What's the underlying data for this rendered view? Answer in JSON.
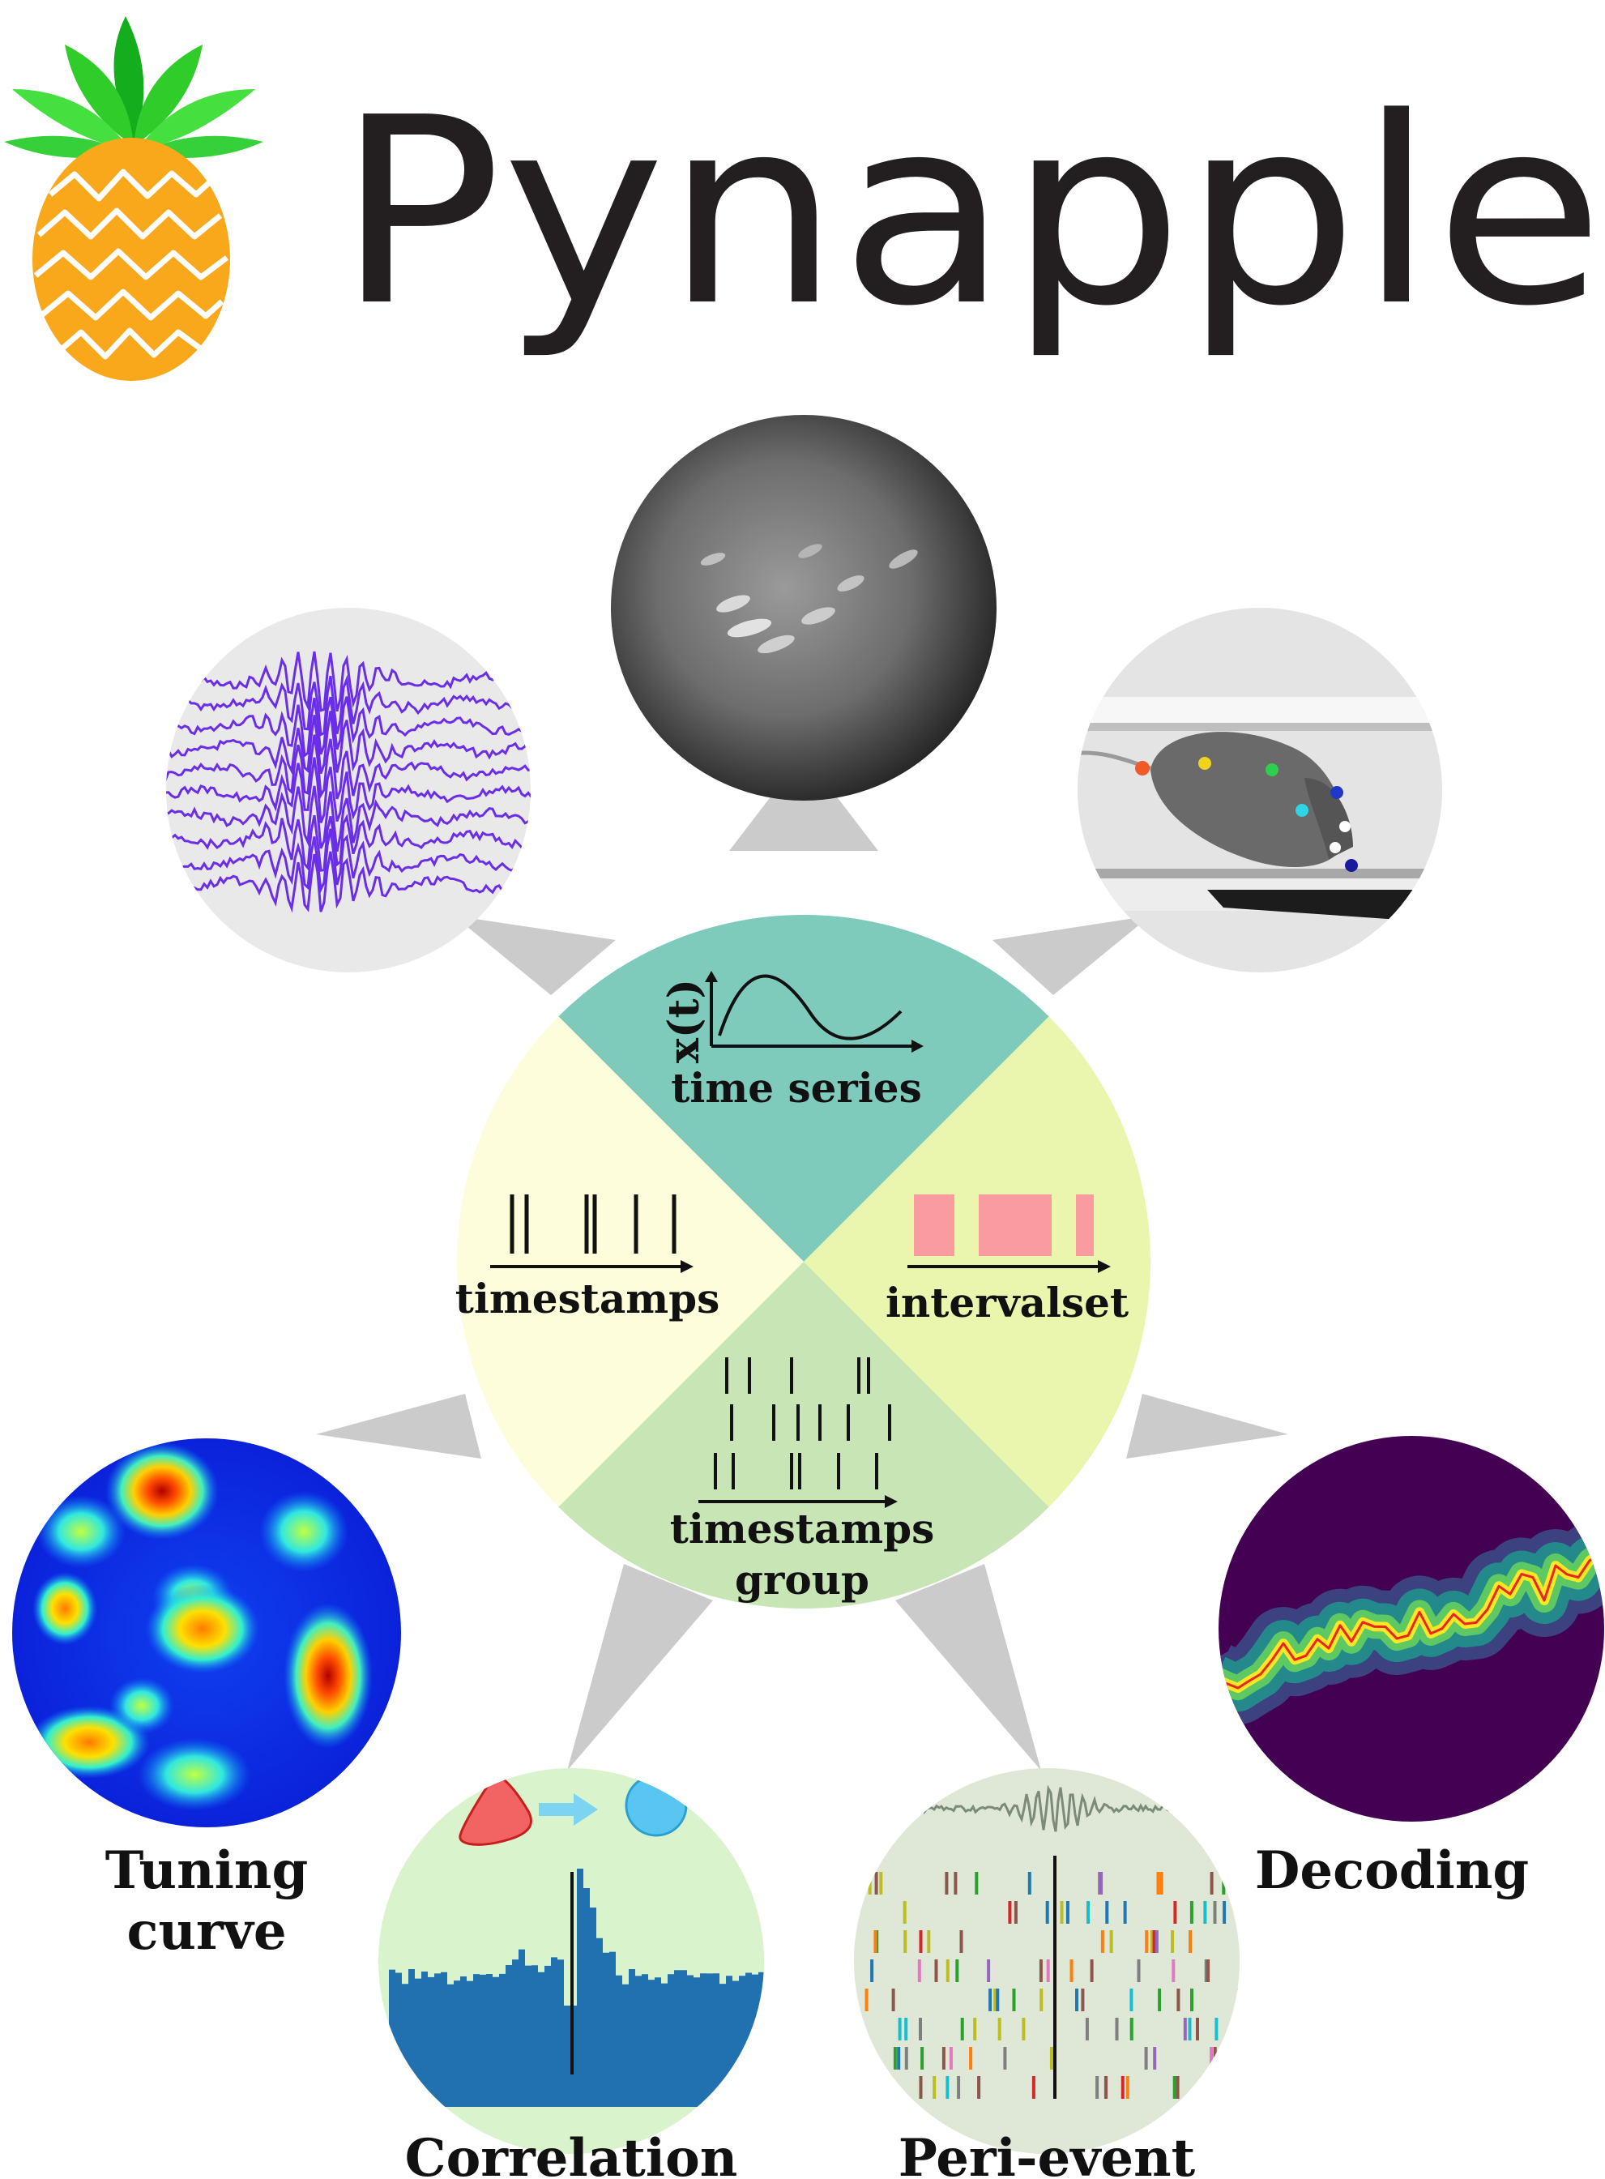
{
  "brand": {
    "name": "Pynapple"
  },
  "core": {
    "sectors": [
      {
        "label": "time series",
        "axis_label": "x(t)",
        "color": "#7fcbbb"
      },
      {
        "label": "timestamps",
        "color": "#fdfddb"
      },
      {
        "label": "intervalset",
        "color": "#eaf5ad"
      },
      {
        "label": "timestamps",
        "label2": "group",
        "color": "#c7e5b5"
      }
    ]
  },
  "satellites": [
    {
      "icon": "lfp-traces-icon"
    },
    {
      "icon": "calcium-imaging-icon"
    },
    {
      "icon": "pose-tracking-icon"
    },
    {
      "icon": "place-field-heatmap-icon",
      "caption": "Tuning",
      "caption2": "curve"
    },
    {
      "icon": "cross-correlogram-icon",
      "caption": "Correlation"
    },
    {
      "icon": "peri-event-raster-icon",
      "caption": "Peri-event"
    },
    {
      "icon": "decoding-posterior-icon",
      "caption": "Decoding"
    }
  ],
  "colors": {
    "spoke": "#cccbcc",
    "trace": "#6a2ee8",
    "interval": "#fa9b9f",
    "correlogram": "#2171b1",
    "decode_bg": "#440154",
    "decode_line": "#e8251f"
  }
}
